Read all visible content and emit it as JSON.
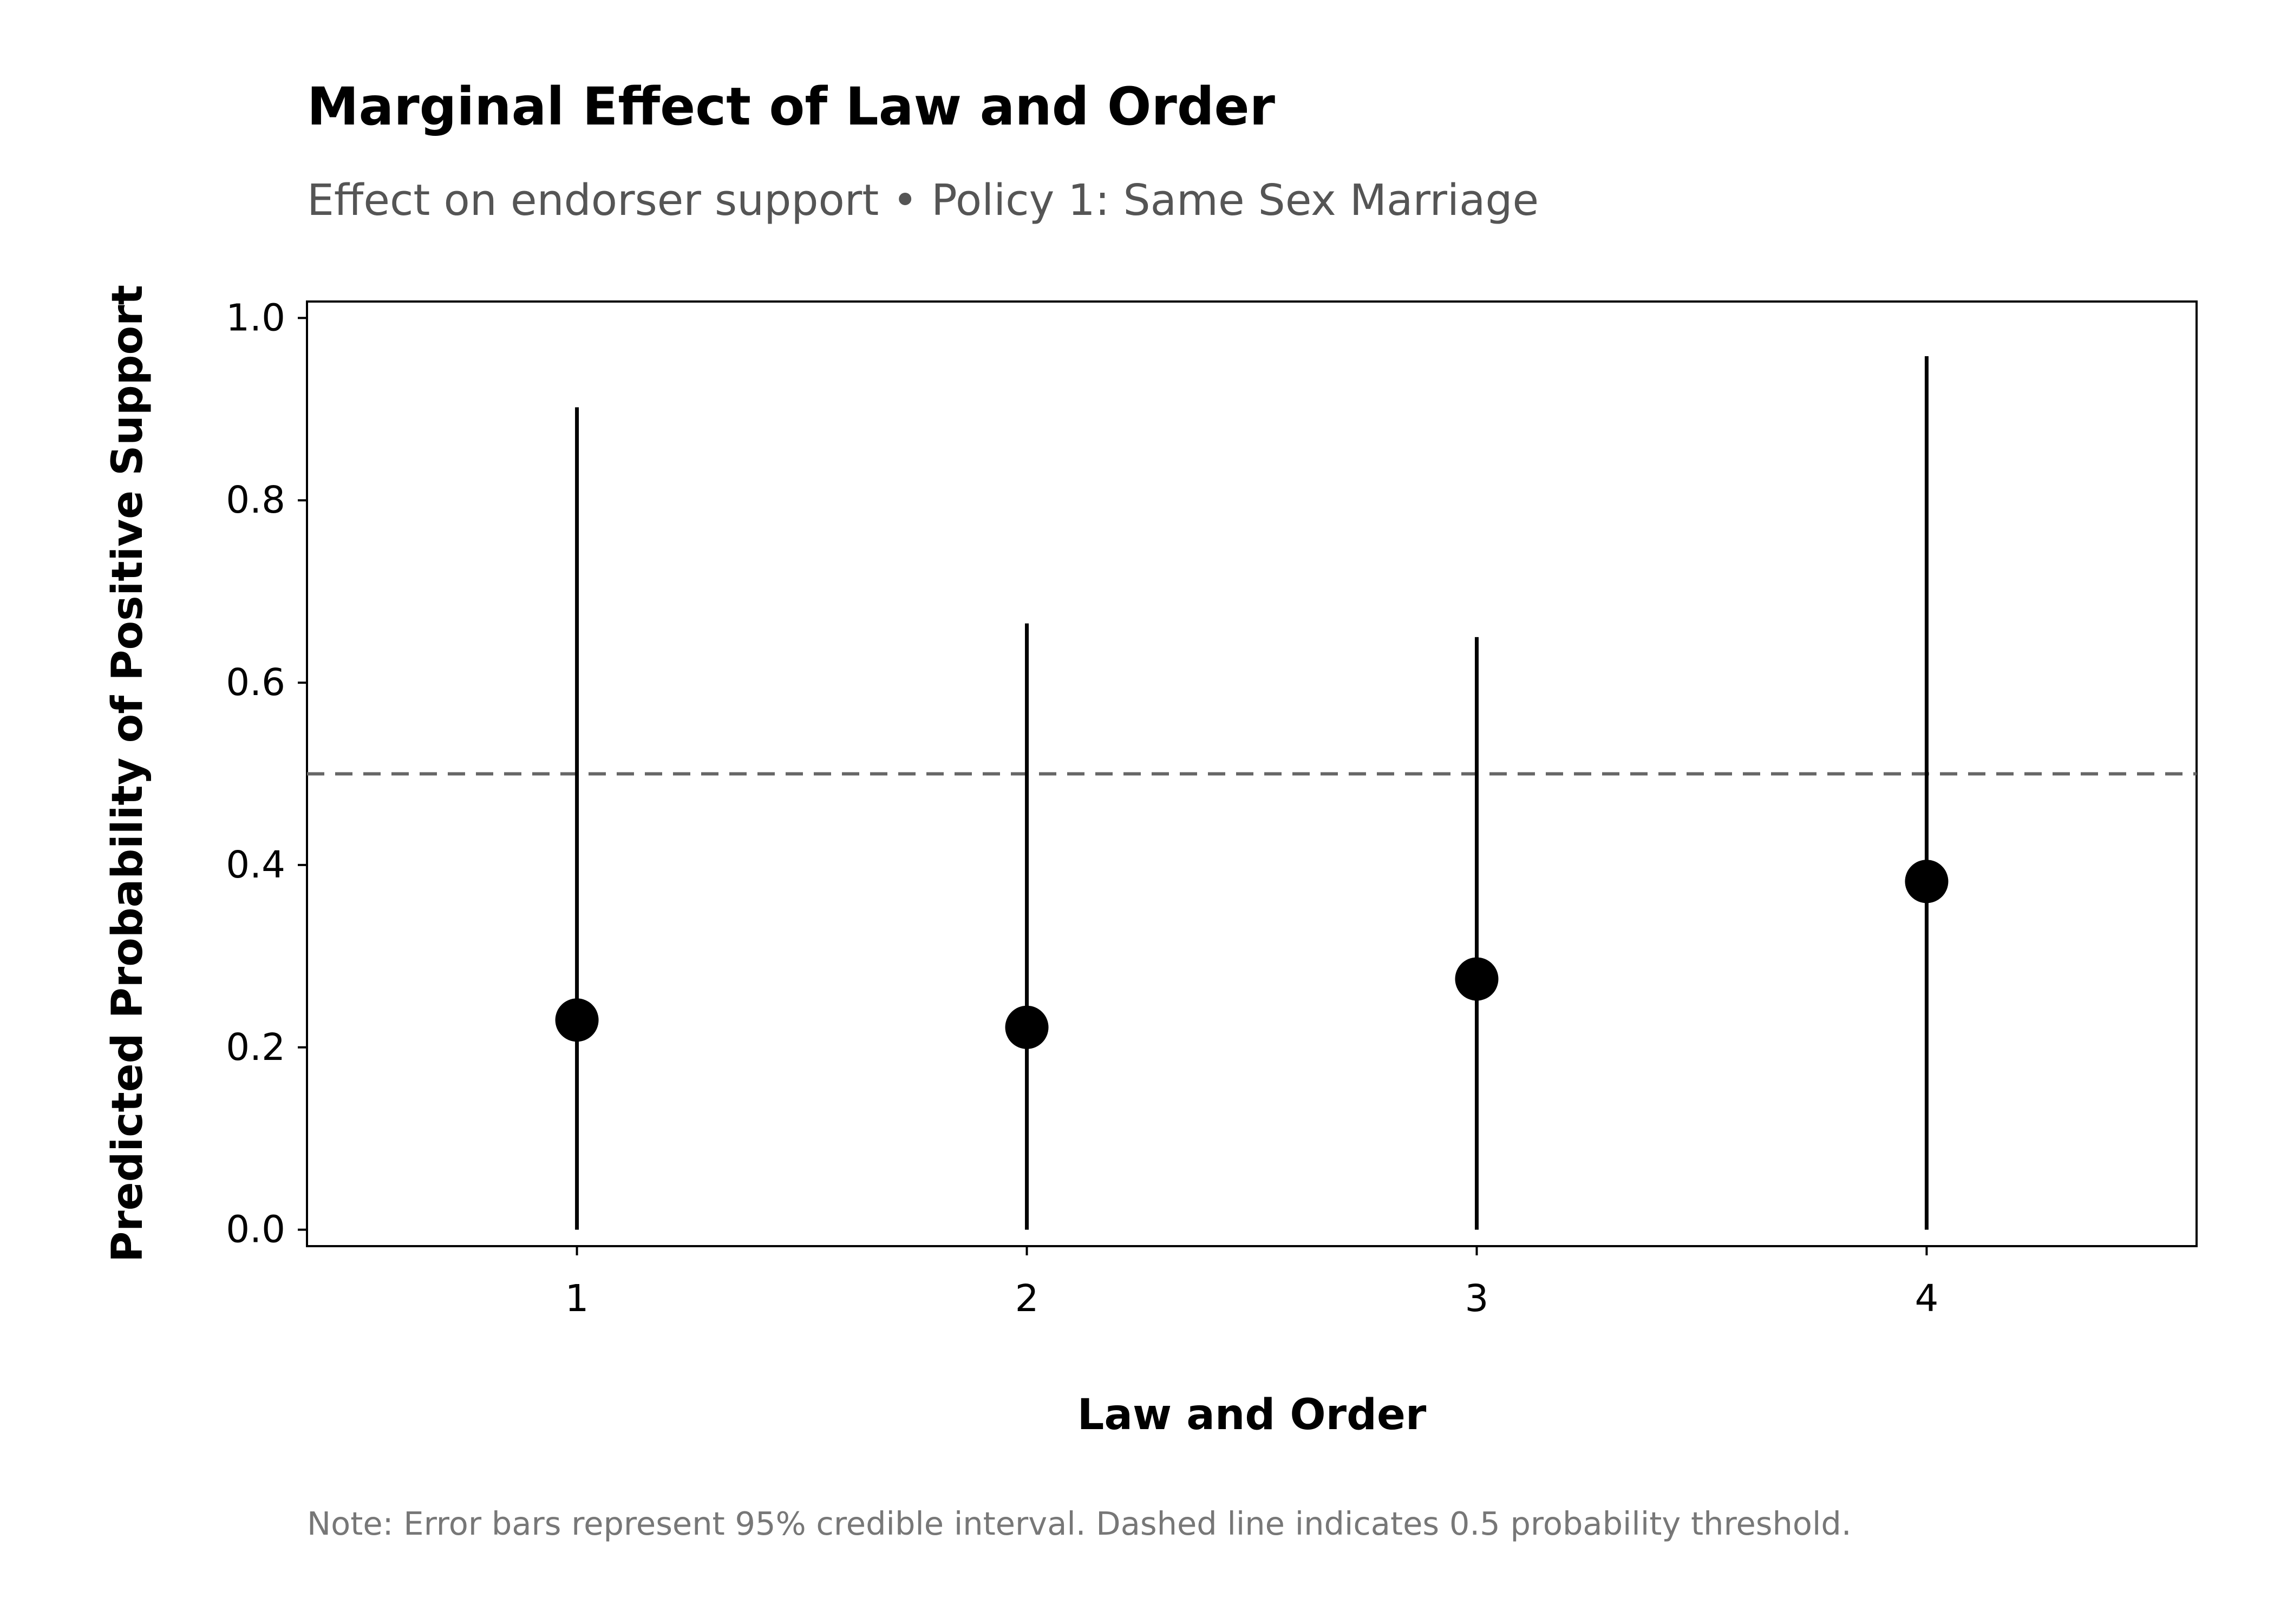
{
  "chart_data": {
    "type": "scatter",
    "title": "Marginal Effect of Law and Order",
    "subtitle": "Effect on endorser support • Policy 1: Same Sex Marriage",
    "xlabel": "Law and Order",
    "ylabel": "Predicted Probability of Positive Support",
    "note": "Note: Error bars represent 95% credible interval. Dashed line indicates 0.5 probability threshold.",
    "x_ticks": [
      "1",
      "2",
      "3",
      "4"
    ],
    "y_ticks": [
      "0.0",
      "0.2",
      "0.4",
      "0.6",
      "0.8",
      "1.0"
    ],
    "xlim": [
      0.4,
      4.6
    ],
    "ylim": [
      -0.018,
      1.018
    ],
    "grid": false,
    "reference_line": {
      "y": 0.5,
      "style": "dashed",
      "color": "#666666"
    },
    "points": [
      {
        "x": 1,
        "y": 0.23,
        "lower": 0.0,
        "upper": 0.902
      },
      {
        "x": 2,
        "y": 0.222,
        "lower": 0.0,
        "upper": 0.665
      },
      {
        "x": 3,
        "y": 0.275,
        "lower": 0.0,
        "upper": 0.65
      },
      {
        "x": 4,
        "y": 0.382,
        "lower": 0.0,
        "upper": 0.958
      }
    ],
    "colors": {
      "point": "#000000",
      "error_bar": "#000000",
      "axis": "#000000"
    }
  }
}
